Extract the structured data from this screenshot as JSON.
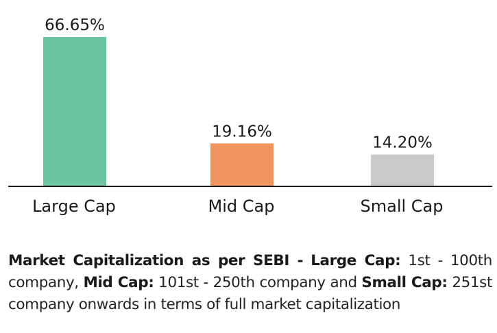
{
  "chart_data": {
    "type": "bar",
    "categories": [
      "Large Cap",
      "Mid Cap",
      "Small Cap"
    ],
    "values": [
      66.65,
      19.16,
      14.2
    ],
    "data_labels": [
      "66.65%",
      "19.16%",
      "14.20%"
    ],
    "colors": [
      "#6cc4a0",
      "#f0955e",
      "#c9c9c9"
    ],
    "ylim": [
      0,
      66.65
    ],
    "grid": false,
    "legend": "none"
  },
  "note": {
    "lead": "Market Capitalization as per SEBI -",
    "large_term": "Large Cap:",
    "large_desc": "1st - 100th company,",
    "mid_term": "Mid Cap:",
    "mid_desc": "101st - 250th company and",
    "small_term": "Small Cap:",
    "small_desc": "251st company onwards in terms of full market capitalization"
  }
}
